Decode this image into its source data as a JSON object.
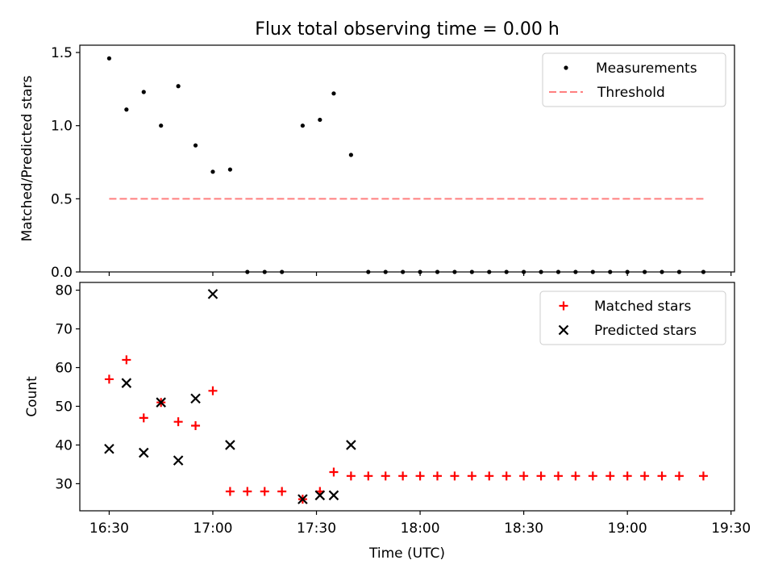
{
  "chart_data": [
    {
      "type": "scatter",
      "title": "Flux total observing time = 0.00 h",
      "xlabel": "",
      "ylabel": "Matched/Predicted stars",
      "ylim": [
        0,
        1.55
      ],
      "yticks": [
        0.0,
        0.5,
        1.0,
        1.5
      ],
      "ytick_labels": [
        "0.0",
        "0.5",
        "1.0",
        "1.5"
      ],
      "xlim_minutes_since_1630": [
        -8.5,
        181
      ],
      "xtick_labels": [],
      "grid": false,
      "legend_position": "top-right",
      "series": [
        {
          "name": "Measurements",
          "marker": "dot",
          "color": "#000000",
          "points": [
            {
              "x": "16:30",
              "y": 1.46
            },
            {
              "x": "16:35",
              "y": 1.11
            },
            {
              "x": "16:40",
              "y": 1.23
            },
            {
              "x": "16:45",
              "y": 1.0
            },
            {
              "x": "16:50",
              "y": 1.27
            },
            {
              "x": "16:55",
              "y": 0.865
            },
            {
              "x": "17:00",
              "y": 0.685
            },
            {
              "x": "17:05",
              "y": 0.7
            },
            {
              "x": "17:10",
              "y": 0.0
            },
            {
              "x": "17:15",
              "y": 0.0
            },
            {
              "x": "17:20",
              "y": 0.0
            },
            {
              "x": "17:26",
              "y": 1.0
            },
            {
              "x": "17:31",
              "y": 1.04
            },
            {
              "x": "17:35",
              "y": 1.22
            },
            {
              "x": "17:40",
              "y": 0.8
            },
            {
              "x": "17:45",
              "y": 0.0
            },
            {
              "x": "17:50",
              "y": 0.0
            },
            {
              "x": "17:55",
              "y": 0.0
            },
            {
              "x": "18:00",
              "y": 0.0
            },
            {
              "x": "18:05",
              "y": 0.0
            },
            {
              "x": "18:10",
              "y": 0.0
            },
            {
              "x": "18:15",
              "y": 0.0
            },
            {
              "x": "18:20",
              "y": 0.0
            },
            {
              "x": "18:25",
              "y": 0.0
            },
            {
              "x": "18:30",
              "y": 0.0
            },
            {
              "x": "18:35",
              "y": 0.0
            },
            {
              "x": "18:40",
              "y": 0.0
            },
            {
              "x": "18:45",
              "y": 0.0
            },
            {
              "x": "18:50",
              "y": 0.0
            },
            {
              "x": "18:55",
              "y": 0.0
            },
            {
              "x": "19:00",
              "y": 0.0
            },
            {
              "x": "19:05",
              "y": 0.0
            },
            {
              "x": "19:10",
              "y": 0.0
            },
            {
              "x": "19:15",
              "y": 0.0
            },
            {
              "x": "19:22",
              "y": 0.0
            }
          ]
        },
        {
          "name": "Threshold",
          "type": "line",
          "style": "dashed",
          "color": "#ff7f7f",
          "points": [
            {
              "x": "16:30",
              "y": 0.5
            },
            {
              "x": "19:22",
              "y": 0.5
            }
          ]
        }
      ]
    },
    {
      "type": "scatter",
      "title": "",
      "xlabel": "Time (UTC)",
      "ylabel": "Count",
      "ylim": [
        23,
        82
      ],
      "yticks": [
        30,
        40,
        50,
        60,
        70,
        80
      ],
      "ytick_labels": [
        "30",
        "40",
        "50",
        "60",
        "70",
        "80"
      ],
      "xlim_minutes_since_1630": [
        -8.5,
        181
      ],
      "xtick_labels": [
        "16:30",
        "17:00",
        "17:30",
        "18:00",
        "18:30",
        "19:00",
        "19:30"
      ],
      "grid": false,
      "legend_position": "top-right",
      "series": [
        {
          "name": "Matched stars",
          "marker": "plus",
          "color": "#ff0000",
          "points": [
            {
              "x": "16:30",
              "y": 57
            },
            {
              "x": "16:35",
              "y": 62
            },
            {
              "x": "16:40",
              "y": 47
            },
            {
              "x": "16:45",
              "y": 51
            },
            {
              "x": "16:50",
              "y": 46
            },
            {
              "x": "16:55",
              "y": 45
            },
            {
              "x": "17:00",
              "y": 54
            },
            {
              "x": "17:05",
              "y": 28
            },
            {
              "x": "17:10",
              "y": 28
            },
            {
              "x": "17:15",
              "y": 28
            },
            {
              "x": "17:20",
              "y": 28
            },
            {
              "x": "17:26",
              "y": 26
            },
            {
              "x": "17:31",
              "y": 28
            },
            {
              "x": "17:35",
              "y": 33
            },
            {
              "x": "17:40",
              "y": 32
            },
            {
              "x": "17:45",
              "y": 32
            },
            {
              "x": "17:50",
              "y": 32
            },
            {
              "x": "17:55",
              "y": 32
            },
            {
              "x": "18:00",
              "y": 32
            },
            {
              "x": "18:05",
              "y": 32
            },
            {
              "x": "18:10",
              "y": 32
            },
            {
              "x": "18:15",
              "y": 32
            },
            {
              "x": "18:20",
              "y": 32
            },
            {
              "x": "18:25",
              "y": 32
            },
            {
              "x": "18:30",
              "y": 32
            },
            {
              "x": "18:35",
              "y": 32
            },
            {
              "x": "18:40",
              "y": 32
            },
            {
              "x": "18:45",
              "y": 32
            },
            {
              "x": "18:50",
              "y": 32
            },
            {
              "x": "18:55",
              "y": 32
            },
            {
              "x": "19:00",
              "y": 32
            },
            {
              "x": "19:05",
              "y": 32
            },
            {
              "x": "19:10",
              "y": 32
            },
            {
              "x": "19:15",
              "y": 32
            },
            {
              "x": "19:22",
              "y": 32
            }
          ]
        },
        {
          "name": "Predicted stars",
          "marker": "x",
          "color": "#000000",
          "points": [
            {
              "x": "16:30",
              "y": 39
            },
            {
              "x": "16:35",
              "y": 56
            },
            {
              "x": "16:40",
              "y": 38
            },
            {
              "x": "16:45",
              "y": 51
            },
            {
              "x": "16:50",
              "y": 36
            },
            {
              "x": "16:55",
              "y": 52
            },
            {
              "x": "17:00",
              "y": 79
            },
            {
              "x": "17:05",
              "y": 40
            },
            {
              "x": "17:26",
              "y": 26
            },
            {
              "x": "17:31",
              "y": 27
            },
            {
              "x": "17:35",
              "y": 27
            },
            {
              "x": "17:40",
              "y": 40
            }
          ]
        }
      ]
    }
  ]
}
